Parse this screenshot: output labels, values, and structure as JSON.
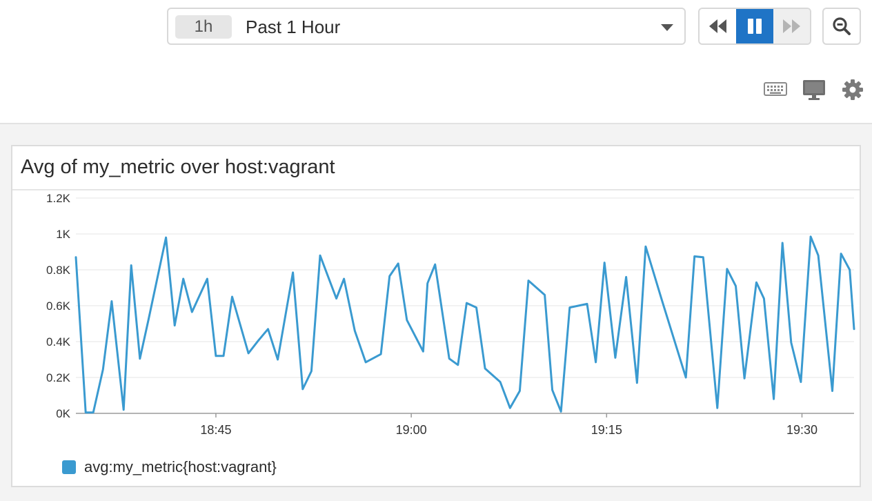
{
  "toolbar": {
    "time_badge": "1h",
    "time_label": "Past 1 Hour",
    "icons": [
      "caret-down-icon",
      "rewind-icon",
      "pause-icon",
      "fast-forward-icon",
      "zoom-out-icon",
      "keyboard-icon",
      "monitor-icon",
      "gear-icon"
    ]
  },
  "widget": {
    "title": "Avg of my_metric over host:vagrant",
    "legend_label": "avg:my_metric{host:vagrant}"
  },
  "colors": {
    "series": "#3a9ad0",
    "accent": "#1f74c6"
  },
  "chart_data": {
    "type": "line",
    "title": "Avg of my_metric over host:vagrant",
    "xlabel": "",
    "ylabel": "",
    "ylim": [
      0,
      1200
    ],
    "yticks": [
      0,
      200,
      400,
      600,
      800,
      1000,
      1200
    ],
    "ytick_labels": [
      "0K",
      "0.2K",
      "0.4K",
      "0.6K",
      "0.8K",
      "1K",
      "1.2K"
    ],
    "xlim": [
      "18:34:15",
      "19:34:00"
    ],
    "xtick_values": [
      "18:45",
      "19:00",
      "19:15",
      "19:30"
    ],
    "xtick_labels": [
      "18:45",
      "19:00",
      "19:15",
      "19:30"
    ],
    "grid": true,
    "legend_position": "bottom-left",
    "series": [
      {
        "name": "avg:my_metric{host:vagrant}",
        "points": [
          [
            "18:34:15",
            870
          ],
          [
            "18:35:00",
            5
          ],
          [
            "18:35:35",
            5
          ],
          [
            "18:36:20",
            245
          ],
          [
            "18:37:00",
            625
          ],
          [
            "18:37:55",
            20
          ],
          [
            "18:38:30",
            825
          ],
          [
            "18:39:10",
            305
          ],
          [
            "18:39:50",
            525
          ],
          [
            "18:41:10",
            980
          ],
          [
            "18:41:50",
            490
          ],
          [
            "18:42:30",
            750
          ],
          [
            "18:43:10",
            565
          ],
          [
            "18:44:20",
            750
          ],
          [
            "18:45:00",
            320
          ],
          [
            "18:45:35",
            320
          ],
          [
            "18:46:15",
            650
          ],
          [
            "18:47:30",
            335
          ],
          [
            "18:48:15",
            405
          ],
          [
            "18:49:00",
            470
          ],
          [
            "18:49:45",
            300
          ],
          [
            "18:50:55",
            785
          ],
          [
            "18:51:40",
            135
          ],
          [
            "18:52:20",
            235
          ],
          [
            "18:53:00",
            880
          ],
          [
            "18:54:15",
            640
          ],
          [
            "18:54:50",
            750
          ],
          [
            "18:55:40",
            460
          ],
          [
            "18:56:30",
            285
          ],
          [
            "18:57:40",
            330
          ],
          [
            "18:58:20",
            765
          ],
          [
            "18:59:00",
            835
          ],
          [
            "18:59:40",
            520
          ],
          [
            "19:00:55",
            345
          ],
          [
            "19:01:15",
            725
          ],
          [
            "19:01:50",
            830
          ],
          [
            "19:02:55",
            305
          ],
          [
            "19:03:35",
            270
          ],
          [
            "19:04:15",
            615
          ],
          [
            "19:05:00",
            590
          ],
          [
            "19:05:40",
            250
          ],
          [
            "19:06:50",
            175
          ],
          [
            "19:07:35",
            30
          ],
          [
            "19:08:20",
            125
          ],
          [
            "19:09:00",
            740
          ],
          [
            "19:10:15",
            660
          ],
          [
            "19:10:50",
            130
          ],
          [
            "19:11:30",
            10
          ],
          [
            "19:12:10",
            590
          ],
          [
            "19:12:50",
            600
          ],
          [
            "19:13:30",
            610
          ],
          [
            "19:14:10",
            285
          ],
          [
            "19:14:50",
            840
          ],
          [
            "19:15:40",
            310
          ],
          [
            "19:16:30",
            760
          ],
          [
            "19:17:20",
            170
          ],
          [
            "19:18:00",
            930
          ],
          [
            "19:19:15",
            630
          ],
          [
            "19:21:05",
            200
          ],
          [
            "19:21:45",
            875
          ],
          [
            "19:22:25",
            870
          ],
          [
            "19:23:30",
            30
          ],
          [
            "19:24:15",
            805
          ],
          [
            "19:24:55",
            710
          ],
          [
            "19:25:35",
            195
          ],
          [
            "19:26:30",
            730
          ],
          [
            "19:27:05",
            640
          ],
          [
            "19:27:50",
            80
          ],
          [
            "19:28:30",
            950
          ],
          [
            "19:29:10",
            395
          ],
          [
            "19:29:55",
            175
          ],
          [
            "19:30:40",
            985
          ],
          [
            "19:31:15",
            880
          ],
          [
            "19:32:20",
            125
          ],
          [
            "19:33:00",
            890
          ],
          [
            "19:33:40",
            800
          ],
          [
            "19:34:00",
            470
          ]
        ]
      }
    ]
  }
}
